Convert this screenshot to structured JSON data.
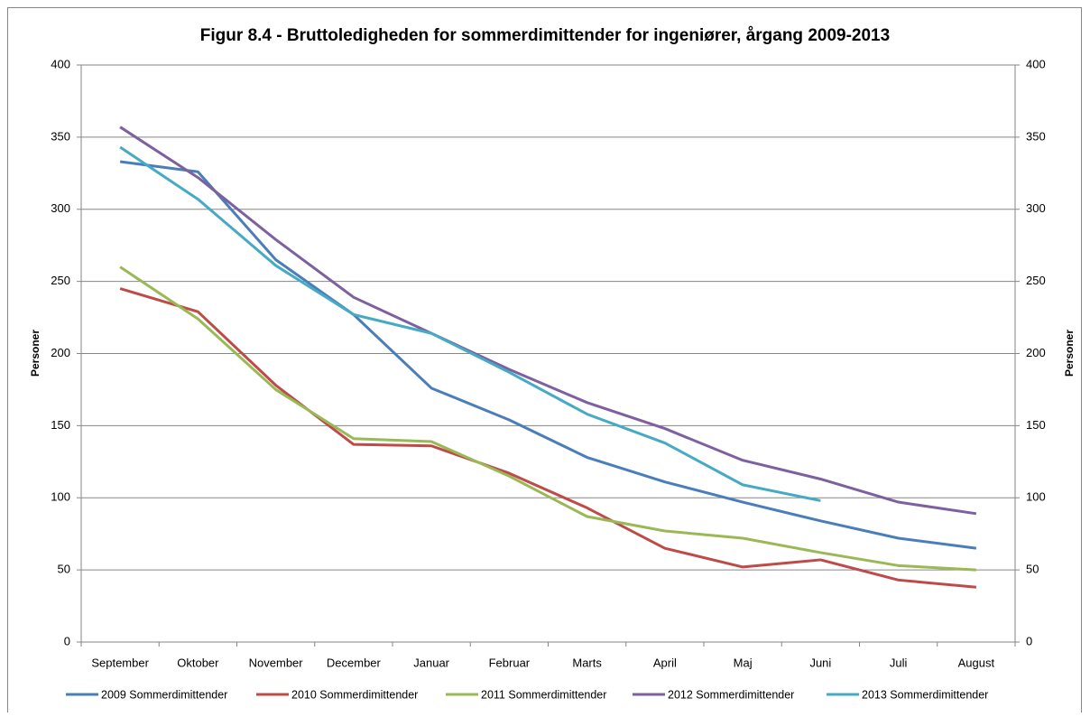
{
  "chart_data": {
    "type": "line",
    "title": "Figur 8.4 - Bruttoledigheden  for sommerdimittender  for ingeniører, årgang 2009-2013",
    "ylabel": "Personer",
    "y2label": "Personer",
    "categories": [
      "September",
      "Oktober",
      "November",
      "December",
      "Januar",
      "Februar",
      "Marts",
      "April",
      "Maj",
      "Juni",
      "Juli",
      "August"
    ],
    "series": [
      {
        "name": "2009 Sommerdimittender",
        "color": "#4a7ebb",
        "values": [
          333,
          326,
          265,
          227,
          176,
          154,
          128,
          111,
          97,
          84,
          72,
          65
        ]
      },
      {
        "name": "2010 Sommerdimittender",
        "color": "#be4b48",
        "values": [
          245,
          229,
          178,
          137,
          136,
          117,
          93,
          65,
          52,
          57,
          43,
          38
        ]
      },
      {
        "name": "2011 Sommerdimittender",
        "color": "#98b954",
        "values": [
          260,
          224,
          175,
          141,
          139,
          115,
          87,
          77,
          72,
          62,
          53,
          50
        ]
      },
      {
        "name": "2012 Sommerdimittender",
        "color": "#7d60a0",
        "values": [
          357,
          322,
          279,
          239,
          214,
          189,
          166,
          148,
          126,
          113,
          97,
          89
        ]
      },
      {
        "name": "2013 Sommerdimittender",
        "color": "#46aac5",
        "values": [
          343,
          307,
          261,
          227,
          214,
          187,
          158,
          138,
          109,
          98,
          null,
          null
        ]
      }
    ],
    "ylim": [
      0,
      400
    ],
    "yticks": [
      0,
      50,
      100,
      150,
      200,
      250,
      300,
      350,
      400
    ],
    "y2lim": [
      0,
      400
    ],
    "y2ticks": [
      0,
      50,
      100,
      150,
      200,
      250,
      300,
      350,
      400
    ],
    "grid": true
  }
}
